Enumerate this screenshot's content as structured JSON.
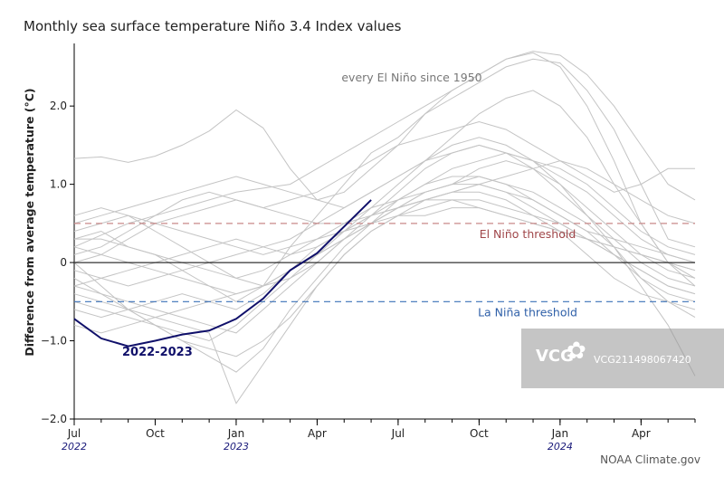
{
  "chart_data": {
    "type": "line",
    "title": "Monthly sea surface temperature Niño 3.4 Index values",
    "ylabel": "Difference from average temperature (°C)",
    "xlabel": "",
    "ylim": [
      -2.0,
      2.8
    ],
    "y_ticks": [
      2.0,
      1.0,
      0,
      -1.0,
      -2.0
    ],
    "y_tick_labels": [
      "2.0",
      "1.0",
      "0",
      "−1.0",
      "−2.0"
    ],
    "x_range": [
      0,
      23
    ],
    "x_ticks": [
      {
        "x": 0,
        "label": "Jul",
        "year": "2022"
      },
      {
        "x": 3,
        "label": "Oct",
        "year": ""
      },
      {
        "x": 6,
        "label": "Jan",
        "year": "2023"
      },
      {
        "x": 9,
        "label": "Apr",
        "year": ""
      },
      {
        "x": 12,
        "label": "Jul",
        "year": ""
      },
      {
        "x": 15,
        "label": "Oct",
        "year": ""
      },
      {
        "x": 18,
        "label": "Jan",
        "year": "2024"
      },
      {
        "x": 21,
        "label": "Apr",
        "year": ""
      }
    ],
    "thresholds": [
      {
        "name": "El Niño threshold",
        "value": 0.5,
        "color": "#c98a8a",
        "label_color": "#a0474a"
      },
      {
        "name": "La Niña threshold",
        "value": -0.5,
        "color": "#3a70b8",
        "label_color": "#2e5fa8"
      }
    ],
    "highlight": {
      "name": "2022-2023",
      "color": "#10106a",
      "x": [
        0,
        1,
        2,
        3,
        4,
        5,
        6,
        7,
        8,
        9,
        10,
        11
      ],
      "values": [
        -0.72,
        -0.97,
        -1.07,
        -1.0,
        -0.92,
        -0.87,
        -0.72,
        -0.46,
        -0.1,
        0.12,
        0.46,
        0.8
      ]
    },
    "background_label": "every El Niño since 1950",
    "background_color": "#c4c4c4",
    "background_series": [
      [
        0.2,
        0.35,
        0.5,
        0.6,
        0.7,
        0.8,
        0.9,
        0.95,
        1.0,
        1.2,
        1.4,
        1.6,
        1.8,
        2.0,
        2.2,
        2.4,
        2.6,
        2.7,
        2.65,
        2.4,
        2.0,
        1.5,
        1.0,
        0.8
      ],
      [
        1.33,
        1.35,
        1.28,
        1.36,
        1.5,
        1.68,
        1.95,
        1.72,
        1.2,
        0.8,
        0.9,
        1.2,
        1.5,
        1.9,
        2.1,
        2.3,
        2.5,
        2.6,
        2.55,
        2.2,
        1.7,
        1.0,
        0.3,
        0.2
      ],
      [
        0.3,
        0.4,
        0.2,
        0.1,
        -0.1,
        -0.3,
        -0.5,
        -0.3,
        0.2,
        0.6,
        1.0,
        1.4,
        1.6,
        1.9,
        2.2,
        2.4,
        2.6,
        2.68,
        2.5,
        2.0,
        1.3,
        0.5,
        0.0,
        -0.2
      ],
      [
        0.5,
        0.6,
        0.7,
        0.8,
        0.9,
        1.0,
        1.1,
        1.0,
        0.9,
        0.8,
        0.7,
        0.9,
        1.1,
        1.3,
        1.6,
        1.9,
        2.1,
        2.2,
        2.0,
        1.6,
        1.0,
        0.5,
        0.0,
        -0.3
      ],
      [
        0.1,
        0.2,
        0.4,
        0.6,
        0.8,
        0.9,
        0.8,
        0.7,
        0.8,
        0.9,
        1.1,
        1.3,
        1.5,
        1.6,
        1.7,
        1.8,
        1.7,
        1.5,
        1.3,
        1.1,
        0.9,
        1.0,
        1.2,
        1.2
      ],
      [
        -0.5,
        -0.6,
        -0.7,
        -0.8,
        -0.9,
        -1.0,
        -0.8,
        -0.5,
        -0.2,
        0.1,
        0.4,
        0.7,
        1.0,
        1.3,
        1.5,
        1.6,
        1.5,
        1.3,
        1.0,
        0.6,
        0.2,
        -0.3,
        -0.8,
        -1.45
      ],
      [
        -0.1,
        -0.2,
        -0.3,
        -0.2,
        -0.1,
        0.0,
        0.1,
        0.2,
        0.3,
        0.5,
        0.7,
        0.9,
        1.1,
        1.3,
        1.4,
        1.5,
        1.4,
        1.3,
        1.1,
        0.9,
        0.6,
        0.3,
        0.1,
        0.0
      ],
      [
        0.0,
        -0.3,
        -0.6,
        -0.8,
        -1.0,
        -1.2,
        -1.4,
        -1.1,
        -0.6,
        -0.2,
        0.2,
        0.5,
        0.8,
        1.0,
        1.1,
        1.1,
        1.0,
        0.9,
        0.7,
        0.5,
        0.2,
        -0.2,
        -0.5,
        -0.7
      ],
      [
        -0.3,
        -0.4,
        -0.5,
        -0.6,
        -0.7,
        -0.8,
        -0.9,
        -0.6,
        -0.3,
        0.0,
        0.3,
        0.5,
        0.7,
        0.8,
        0.9,
        1.0,
        0.9,
        0.8,
        0.6,
        0.4,
        0.1,
        -0.2,
        -0.4,
        -0.5
      ],
      [
        0.4,
        0.5,
        0.6,
        0.5,
        0.4,
        0.3,
        0.2,
        0.1,
        0.2,
        0.3,
        0.5,
        0.7,
        0.8,
        0.9,
        1.0,
        1.1,
        1.0,
        0.8,
        0.6,
        0.4,
        0.3,
        0.2,
        0.1,
        0.0
      ],
      [
        -0.2,
        -0.4,
        -0.6,
        -0.8,
        -1.0,
        -1.1,
        -1.2,
        -1.0,
        -0.7,
        -0.3,
        0.1,
        0.4,
        0.6,
        0.8,
        0.9,
        0.9,
        0.8,
        0.6,
        0.4,
        0.1,
        -0.2,
        -0.4,
        -0.5,
        -0.6
      ],
      [
        0.2,
        0.1,
        0.0,
        -0.1,
        -0.2,
        -0.3,
        -0.4,
        -0.3,
        -0.1,
        0.1,
        0.3,
        0.5,
        0.7,
        0.9,
        1.0,
        1.2,
        1.3,
        1.2,
        1.0,
        0.7,
        0.4,
        0.1,
        -0.1,
        -0.2
      ],
      [
        -0.6,
        -0.7,
        -0.6,
        -0.5,
        -0.4,
        -0.5,
        -0.6,
        -0.4,
        -0.1,
        0.2,
        0.4,
        0.6,
        0.7,
        0.8,
        0.8,
        0.7,
        0.6,
        0.5,
        0.4,
        0.3,
        0.2,
        0.1,
        0.0,
        -0.1
      ],
      [
        -0.4,
        -0.5,
        -0.6,
        -0.7,
        -0.8,
        -0.9,
        -1.8,
        -1.3,
        -0.8,
        -0.3,
        0.1,
        0.4,
        0.6,
        0.7,
        0.8,
        0.8,
        0.7,
        0.6,
        0.5,
        0.3,
        0.1,
        -0.1,
        -0.3,
        -0.4
      ],
      [
        0.0,
        0.1,
        0.3,
        0.5,
        0.6,
        0.7,
        0.8,
        0.7,
        0.6,
        0.5,
        0.5,
        0.6,
        0.7,
        0.8,
        0.9,
        1.0,
        1.1,
        1.2,
        1.3,
        1.2,
        1.0,
        0.8,
        0.6,
        0.5
      ],
      [
        -0.3,
        -0.2,
        -0.1,
        0.0,
        0.1,
        0.2,
        0.3,
        0.2,
        0.1,
        0.2,
        0.4,
        0.6,
        0.8,
        1.0,
        1.2,
        1.3,
        1.4,
        1.3,
        1.2,
        1.0,
        0.7,
        0.4,
        0.2,
        0.1
      ],
      [
        0.3,
        0.3,
        0.2,
        0.1,
        0.0,
        -0.1,
        -0.2,
        -0.1,
        0.1,
        0.3,
        0.4,
        0.5,
        0.6,
        0.6,
        0.7,
        0.7,
        0.6,
        0.5,
        0.4,
        0.3,
        0.2,
        0.1,
        0.0,
        -0.1
      ],
      [
        -0.8,
        -0.9,
        -0.8,
        -0.7,
        -0.6,
        -0.5,
        -0.4,
        -0.3,
        -0.1,
        0.1,
        0.3,
        0.5,
        0.7,
        0.9,
        1.0,
        1.0,
        0.9,
        0.7,
        0.5,
        0.3,
        0.1,
        -0.1,
        -0.3,
        -0.4
      ],
      [
        0.6,
        0.7,
        0.6,
        0.4,
        0.2,
        0.0,
        -0.2,
        -0.3,
        -0.2,
        0.0,
        0.3,
        0.6,
        0.9,
        1.2,
        1.4,
        1.5,
        1.4,
        1.2,
        0.9,
        0.6,
        0.3,
        0.0,
        -0.2,
        -0.3
      ]
    ],
    "credit": "NOAA Climate.gov"
  },
  "watermark": {
    "logo": "VCG",
    "id_text": "VCG211498067420"
  }
}
